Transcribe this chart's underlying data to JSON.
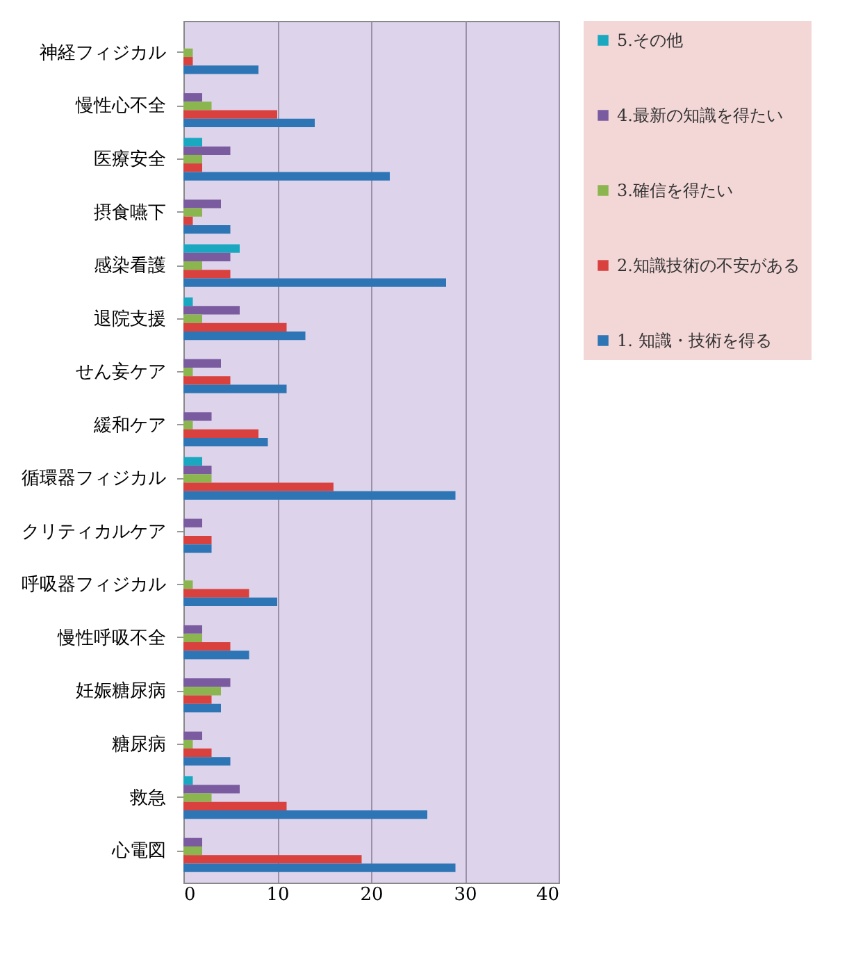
{
  "chart_data": {
    "type": "bar",
    "orientation": "horizontal",
    "categories": [
      "神経フィジカル",
      "慢性心不全",
      "医療安全",
      "摂食嚥下",
      "感染看護",
      "退院支援",
      "せん妄ケア",
      "緩和ケア",
      "循環器フィジカル",
      "クリティカルケア",
      "呼吸器フィジカル",
      "慢性呼吸不全",
      "妊娠糖尿病",
      "糖尿病",
      "救急",
      "心電図"
    ],
    "series": [
      {
        "name": "5.その他",
        "color": "#1aa8c0",
        "values": [
          0,
          0,
          2,
          0,
          6,
          1,
          0,
          0,
          2,
          0,
          0,
          0,
          0,
          0,
          1,
          0
        ]
      },
      {
        "name": "4.最新の知識を得たい",
        "color": "#7a5ba0",
        "values": [
          0,
          2,
          5,
          4,
          5,
          6,
          4,
          3,
          3,
          2,
          0,
          2,
          5,
          2,
          6,
          2
        ]
      },
      {
        "name": "3.確信を得たい",
        "color": "#8bb64f",
        "values": [
          1,
          3,
          2,
          2,
          2,
          2,
          1,
          1,
          3,
          0,
          1,
          2,
          4,
          1,
          3,
          2
        ]
      },
      {
        "name": "2.知識技術の不安がある",
        "color": "#d9413f",
        "values": [
          1,
          10,
          2,
          1,
          5,
          11,
          5,
          8,
          16,
          3,
          7,
          5,
          3,
          3,
          11,
          19
        ]
      },
      {
        "name": "1.  知識・技術を得る",
        "color": "#2e75b6",
        "values": [
          8,
          14,
          22,
          5,
          28,
          13,
          11,
          9,
          29,
          3,
          10,
          7,
          4,
          5,
          26,
          29
        ]
      }
    ],
    "xlim": [
      0,
      40
    ],
    "xticks": [
      0,
      10,
      20,
      30,
      40
    ],
    "grid": "x",
    "legend": "top right"
  }
}
